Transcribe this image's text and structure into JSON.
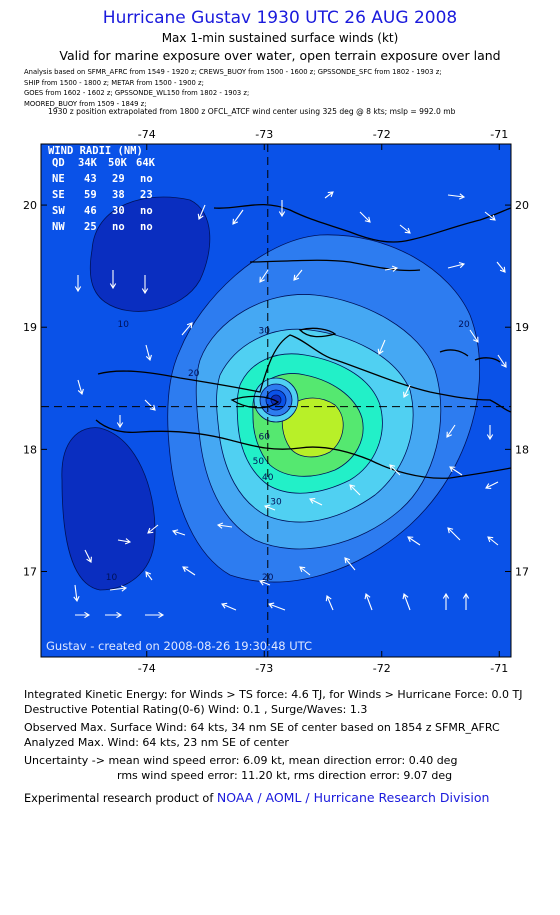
{
  "header": {
    "title": "Hurricane Gustav 1930 UTC 26 AUG 2008",
    "subtitle": "Max 1-min sustained surface winds (kt)",
    "validity": "Valid for marine exposure over water, open terrain exposure over land"
  },
  "analysis_sources": [
    "Analysis based on  SFMR_AFRC from 1549 - 1920 z;  CREWS_BUOY from 1500 - 1600 z;  GPSSONDE_SFC from 1802 - 1903 z;",
    "SHIP from 1500 - 1800 z;  METAR from 1500 - 1900 z;",
    "GOES from 1602 - 1602 z;  GPSSONDE_WL150 from 1802 - 1903 z;",
    "MOORED_BUOY from 1509 - 1849 z;"
  ],
  "extrapolation": "1930 z position extrapolated from 1800 z OFCL_ATCF wind center using 325 deg @ 8 kts; mslp = 992.0 mb",
  "wind_radii": {
    "title": "WIND RADII (NM)",
    "header": [
      "QD",
      "34K",
      "50K",
      "64K"
    ],
    "rows": [
      [
        "NE",
        "43",
        "29",
        "no"
      ],
      [
        "SE",
        "59",
        "38",
        "23"
      ],
      [
        "SW",
        "46",
        "30",
        "no"
      ],
      [
        "NW",
        "25",
        "no",
        "no"
      ]
    ]
  },
  "credit": "Gustav - created on 2008-08-26 19:30:48 UTC",
  "chart_data": {
    "type": "contour",
    "xticks": [
      "-74",
      "-73",
      "-72",
      "-71"
    ],
    "yticks": [
      "20",
      "19",
      "18",
      "17"
    ],
    "xlim": [
      -74.9,
      -70.9
    ],
    "ylim": [
      16.3,
      20.5
    ],
    "center": {
      "lon": -72.97,
      "lat": 18.35
    },
    "contour_levels": [
      10,
      20,
      30,
      40,
      50,
      60
    ],
    "contour_labels": [
      {
        "text": "10",
        "lon": -74.2,
        "lat": 19.0
      },
      {
        "text": "10",
        "lon": -74.3,
        "lat": 16.93
      },
      {
        "text": "20",
        "lon": -73.6,
        "lat": 18.6
      },
      {
        "text": "20",
        "lon": -71.3,
        "lat": 19.0
      },
      {
        "text": "20",
        "lon": -72.97,
        "lat": 16.93
      },
      {
        "text": "30",
        "lon": -73.0,
        "lat": 18.95
      },
      {
        "text": "30",
        "lon": -72.9,
        "lat": 17.55
      },
      {
        "text": "40",
        "lon": -72.97,
        "lat": 17.75
      },
      {
        "text": "50",
        "lon": -73.05,
        "lat": 17.88
      },
      {
        "text": "60",
        "lon": -73.0,
        "lat": 18.08
      }
    ],
    "colors": {
      "background": "#0a52e8",
      "low_center": "#0a2ec0",
      "level_20": "#2d7cf0",
      "level_30": "#45a8f3",
      "level_40": "#50d0f2",
      "level_50": "#22f0c8",
      "level_60": "#55e870",
      "level_65": "#b8f028",
      "core": "#0d2eb8"
    }
  },
  "stats": {
    "ike": "Integrated Kinetic Energy:  for Winds > TS force: 4.6 TJ,  for Winds > Hurricane Force: 0.0 TJ",
    "dpr": "Destructive Potential Rating(0-6)   Wind: 0.1 , Surge/Waves: 1.3",
    "observed_max": "Observed Max. Surface Wind: 64 kts, 34 nm SE of center based on 1854 z SFMR_AFRC",
    "analyzed_max": "Analyzed Max. Wind: 64 kts, 23 nm SE of center",
    "uncertainty_1": "Uncertainty -> mean wind speed error: 6.09 kt,   mean direction error: 0.40 deg",
    "uncertainty_2": "rms wind speed error: 11.20 kt,   rms direction error: 9.07 deg"
  },
  "footer": {
    "prefix": "Experimental research product of ",
    "link": "NOAA / AOML / Hurricane Research Division"
  }
}
